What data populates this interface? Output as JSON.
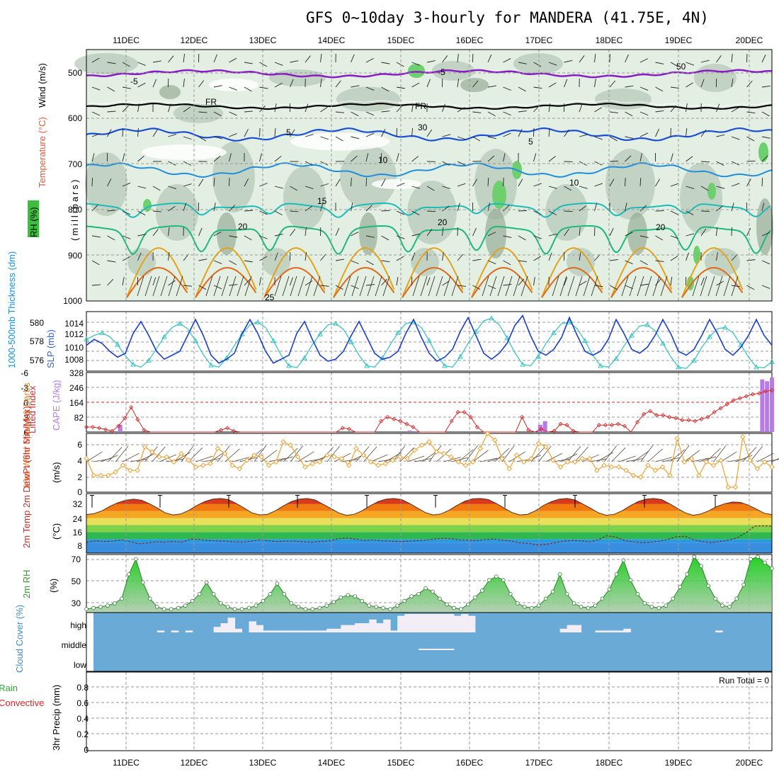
{
  "title": "GFS 0~10day 3-hourly for MANDERA (41.75E, 4N)",
  "colors": {
    "rh_light": "#e2efe2",
    "rh_mid": "#b8cab8",
    "rh_dark": "#99ad99",
    "rh_green": "#6ecf6e",
    "temp_purple": "#8a1cc4",
    "temp_blue": "#1d4fd6",
    "temp_lblue": "#1f8fdd",
    "temp_cyan": "#1cbcb8",
    "temp_green": "#1eb87c",
    "temp_orange": "#e3a21c",
    "temp_dorange": "#e06a1c",
    "sky_blue": "#6aaad6",
    "cloud": "#f3eef6",
    "rh2m_fill": "#5cc05c",
    "rh2m_line": "#2e7d2e",
    "cape_purple": "#b77be8",
    "lifted_red": "#d62828",
    "wind_orange": "#f0a030",
    "slp_teal": "#3ec3c3",
    "thick_blue": "#1b3fc8"
  },
  "time_axis": {
    "labels": [
      "11DEC",
      "12DEC",
      "13DEC",
      "14DEC",
      "15DEC",
      "16DEC",
      "17DEC",
      "18DEC",
      "19DEC",
      "20DEC"
    ]
  },
  "panels": {
    "upper_air": {
      "ylabel_wind": "Wind (m/s)",
      "ylabel_temp": "Temperature (°C)",
      "ylabel_rh": "RH (%)",
      "ylabel_unit": "(millibars)",
      "yticks": [
        "500",
        "600",
        "700",
        "800",
        "900",
        "1000"
      ],
      "contour_labels": [
        "-5",
        "FR",
        "5",
        "10",
        "15",
        "20",
        "25",
        "50",
        "30",
        "-5",
        "FR",
        "5",
        "10",
        "20",
        "20"
      ]
    },
    "thickness_slp": {
      "ylabel_thick": "1000-500mb Thickness (dm)",
      "ylabel_slp": "SLP (mb)",
      "yticks_left": [
        "580",
        "578",
        "576"
      ],
      "yticks_right": [
        "1014",
        "1012",
        "1010",
        "1008"
      ]
    },
    "lifted_cape": {
      "ylabel_li": "Lifted Index",
      "ylabel_cape": "CAPE (J/kg)",
      "yticks_left": [
        "-6",
        "-3",
        "0",
        "3",
        "6"
      ],
      "yticks_right": [
        "328",
        "246",
        "164",
        "82"
      ]
    },
    "wind10m": {
      "ylabel": "10m Wind Speed & Barbs",
      "ylabel_unit": "(m/s)",
      "yticks": [
        "6",
        "4",
        "2",
        "0"
      ]
    },
    "temp2m": {
      "ylabel": "2m Temp 2m DewPt (6hr Min/Max)",
      "ylabel_unit": "(°C)",
      "yticks": [
        "32",
        "24",
        "16",
        "8"
      ]
    },
    "rh2m": {
      "ylabel": "2m RH",
      "ylabel_unit": "(%)",
      "yticks": [
        "70",
        "50",
        "30"
      ]
    },
    "cloud": {
      "ylabel": "Cloud Cover (%)",
      "levels": [
        "high",
        "middle",
        "low"
      ]
    },
    "precip": {
      "ylabel_total": "Total / Rain",
      "ylabel_conv": "Convective",
      "ylabel_main": "3hr Precip (mm)",
      "yticks": [
        "0.8",
        "0.6",
        "0.4",
        "0.2",
        "0"
      ],
      "run_total": "Run Total = 0"
    }
  },
  "chart_data": [
    {
      "type": "line",
      "title": "1000-500mb Thickness / SLP",
      "series": [
        {
          "name": "SLP (mb)",
          "values": [
            1011.8,
            1012.4,
            1012.8,
            1012.2,
            1011.0,
            1009.3,
            1008.0,
            1007.6,
            1008.6,
            1010.4,
            1012.2,
            1013.6,
            1014.2,
            1013.4,
            1011.6,
            1009.5,
            1007.9,
            1007.6,
            1009.0,
            1010.9,
            1012.6,
            1014.0,
            1014.4,
            1013.6,
            1011.6,
            1009.4,
            1007.8,
            1007.5,
            1009.0,
            1011.0,
            1012.6,
            1014.0,
            1014.2,
            1013.3,
            1011.4,
            1009.4,
            1007.8,
            1007.6,
            1009.0,
            1011.0,
            1012.8,
            1014.2,
            1014.4,
            1013.6,
            1011.6,
            1009.4,
            1007.8,
            1007.6,
            1009.2,
            1011.2,
            1013.0,
            1014.6,
            1015.0,
            1014.0,
            1012.0,
            1009.8,
            1008.0,
            1007.8,
            1009.2,
            1011.2,
            1012.8,
            1014.2,
            1014.4,
            1013.4,
            1011.6,
            1009.4,
            1007.8,
            1007.6,
            1008.9,
            1010.8,
            1012.4,
            1013.8,
            1014.0,
            1013.1,
            1011.2,
            1009.2,
            1007.6,
            1007.4,
            1008.6,
            1010.6,
            1012.2,
            1013.4,
            1013.6,
            1012.8,
            1011.0,
            1009.1,
            1007.6,
            1007.5,
            1008.4
          ]
        },
        {
          "name": "Thickness (dm)",
          "values": [
            577.6,
            578.2,
            577.8,
            577.0,
            576.4,
            576.8,
            578.8,
            580.0,
            578.6,
            577.0,
            576.2,
            576.6,
            577.0,
            578.6,
            580.2,
            578.6,
            576.6,
            575.8,
            576.2,
            576.8,
            578.8,
            580.2,
            578.8,
            577.0,
            575.8,
            576.2,
            576.6,
            578.8,
            580.0,
            578.2,
            576.6,
            576.0,
            576.2,
            577.0,
            578.6,
            580.0,
            578.4,
            576.8,
            576.2,
            576.4,
            577.0,
            578.8,
            580.2,
            578.4,
            576.8,
            576.0,
            576.4,
            577.2,
            579.0,
            580.4,
            578.6,
            576.8,
            576.2,
            576.8,
            577.8,
            579.6,
            580.6,
            578.6,
            577.0,
            576.6,
            577.2,
            578.4,
            580.4,
            578.6,
            577.0,
            576.6,
            577.0,
            578.2,
            580.2,
            578.8,
            577.2,
            576.8,
            577.4,
            578.6,
            580.2,
            578.8,
            577.0,
            576.6,
            577.2,
            578.6,
            580.2,
            578.8,
            577.2,
            576.6,
            577.4,
            578.6,
            580.2,
            578.6,
            577.6
          ]
        }
      ],
      "ylim_left": [
        575,
        581
      ],
      "ylim_right": [
        1007,
        1016
      ]
    },
    {
      "type": "bar",
      "title": "CAPE (J/kg) / Lifted Index",
      "cape_values": [
        0,
        0,
        0,
        0,
        0,
        0,
        0,
        40,
        0,
        0,
        0,
        0,
        0,
        0,
        0,
        0,
        0,
        0,
        0,
        0,
        0,
        0,
        0,
        0,
        0,
        0,
        0,
        0,
        0,
        0,
        0,
        0,
        0,
        0,
        0,
        0,
        0,
        0,
        0,
        0,
        0,
        0,
        0,
        0,
        0,
        0,
        0,
        0,
        0,
        0,
        0,
        0,
        0,
        0,
        0,
        0,
        0,
        0,
        0,
        0,
        0,
        0,
        0,
        0,
        0,
        0,
        0,
        8,
        0,
        0,
        0,
        0,
        0,
        0,
        0,
        0,
        0,
        0,
        0,
        0,
        0,
        0,
        0,
        0,
        0,
        0,
        0,
        0,
        0,
        0,
        0,
        0,
        0,
        0,
        40,
        60,
        0,
        0,
        0,
        0,
        0,
        0,
        0,
        0,
        0,
        0,
        0,
        0,
        0,
        0,
        0,
        0,
        0,
        0,
        0,
        0,
        0,
        0,
        0,
        0,
        0,
        0,
        0,
        0,
        0,
        0,
        0,
        0,
        0,
        0,
        0,
        0,
        0,
        0,
        0,
        0,
        0,
        0,
        0,
        0,
        290,
        280,
        300
      ],
      "lifted_index": [
        5.0,
        5.0,
        5.2,
        5.5,
        5.8,
        4.8,
        3.2,
        1.0,
        3.5,
        5.6,
        6.0,
        6.0,
        6.0,
        6.0,
        6.0,
        6.0,
        6.0,
        6.0,
        6.0,
        6.0,
        6.0,
        5.6,
        5.2,
        5.8,
        6.0,
        6.0,
        6.0,
        6.0,
        6.0,
        6.0,
        6.0,
        6.0,
        6.0,
        6.0,
        6.0,
        6.0,
        6.0,
        6.0,
        6.0,
        6.0,
        5.2,
        5.4,
        6.0,
        6.0,
        6.0,
        6.0,
        3.8,
        3.0,
        3.4,
        3.8,
        4.4,
        5.0,
        6.0,
        6.0,
        6.0,
        6.0,
        6.0,
        3.8,
        2.0,
        2.0,
        3.0,
        5.0,
        6.0,
        6.0,
        6.0,
        6.0,
        6.0,
        6.0,
        3.0,
        5.6,
        6.0,
        5.4,
        6.0,
        5.8,
        4.4,
        4.6,
        5.8,
        6.0,
        6.0,
        6.0,
        4.6,
        4.6,
        4.6,
        4.4,
        4.8,
        6.0,
        4.0,
        2.4,
        1.8,
        2.6,
        2.6,
        3.0,
        3.2,
        3.6,
        3.6,
        3.8,
        3.4,
        3.0,
        2.0,
        1.2,
        0.4,
        -0.4,
        -0.8,
        -1.2,
        -1.6,
        -1.8,
        -2.2,
        -2.4
      ],
      "ylim_left": [
        6,
        -6
      ],
      "ylim_right": [
        0,
        328
      ]
    },
    {
      "type": "line",
      "title": "10m Wind Speed (m/s)",
      "values": [
        4.0,
        2.0,
        2.0,
        2.0,
        2.4,
        3.2,
        2.6,
        2.6,
        5.4,
        4.8,
        4.2,
        4.2,
        3.6,
        4.6,
        3.8,
        3.0,
        3.2,
        3.4,
        5.2,
        4.6,
        3.2,
        2.8,
        3.8,
        4.4,
        4.2,
        3.2,
        3.6,
        6.0,
        5.6,
        4.2,
        3.0,
        3.4,
        3.6,
        4.4,
        4.2,
        4.0,
        3.2,
        5.2,
        4.4,
        3.6,
        3.2,
        3.4,
        3.8,
        4.2,
        4.0,
        5.0,
        5.6,
        6.0,
        4.8,
        4.6,
        4.2,
        3.6,
        3.2,
        3.6,
        5.2,
        7.0,
        6.2,
        4.0,
        2.8,
        4.4,
        3.6,
        4.0,
        5.8,
        5.4,
        3.8,
        3.0,
        3.6,
        3.6,
        4.0,
        4.0,
        2.6,
        3.2,
        3.0,
        3.0,
        2.6,
        2.0,
        1.8,
        3.2,
        2.6,
        3.0,
        2.0,
        6.4,
        3.6,
        4.0,
        2.0,
        3.6,
        3.2,
        3.8,
        0.6,
        0.6,
        6.6,
        3.8,
        2.8,
        3.6,
        3.0
      ],
      "ylim": [
        0,
        7
      ]
    },
    {
      "type": "area",
      "title": "2m Temp / 2m DewPt (°C)",
      "temp": [
        26.0,
        26.6,
        28.2,
        30.8,
        32.8,
        34.2,
        34.8,
        34.2,
        32.2,
        29.8,
        27.0,
        25.8,
        26.4,
        28.4,
        31.2,
        33.4,
        34.8,
        35.2,
        34.6,
        32.4,
        29.8,
        27.0,
        25.8,
        26.2,
        28.2,
        31.0,
        33.4,
        34.8,
        35.2,
        34.4,
        32.0,
        29.6,
        27.0,
        25.6,
        26.2,
        28.2,
        31.0,
        33.4,
        34.8,
        35.2,
        34.6,
        32.4,
        29.8,
        27.2,
        25.8,
        26.4,
        28.4,
        31.2,
        33.6,
        35.0,
        35.2,
        34.6,
        32.4,
        29.8,
        27.2,
        25.8,
        26.2,
        28.2,
        31.2,
        33.4,
        34.8,
        35.2,
        34.4,
        32.0,
        29.6,
        27.0,
        25.6,
        26.2,
        28.2,
        31.0,
        33.4,
        34.8,
        35.2,
        34.6,
        32.2,
        29.6,
        27.0,
        25.6,
        26.4,
        28.2,
        30.6,
        32.2,
        33.2,
        33.0,
        31.4,
        29.2,
        26.8,
        26.0
      ],
      "dewpt": [
        10.0,
        11.0,
        10.6,
        10.8,
        11.6,
        10.6,
        9.4,
        9.8,
        10.4,
        10.2,
        10.6,
        10.2,
        12.0,
        11.8,
        11.2,
        11.0,
        10.8,
        10.4,
        10.2,
        10.8,
        11.6,
        11.0,
        10.6,
        10.8,
        10.8,
        10.4,
        10.2,
        10.6,
        11.0,
        12.2,
        12.6,
        12.0,
        11.2,
        11.6,
        11.0,
        10.8,
        10.6,
        10.8,
        11.0,
        11.4,
        12.0,
        12.4,
        12.2,
        11.6,
        11.4,
        11.2,
        11.8,
        12.0,
        11.4,
        10.8,
        9.8,
        9.6,
        8.6,
        9.0,
        10.0,
        10.8,
        11.2,
        11.0,
        10.4,
        11.6,
        14.0,
        13.2,
        11.2,
        10.4,
        10.0,
        10.2,
        10.8,
        11.8,
        13.4,
        13.6,
        11.6,
        10.6,
        10.0,
        10.6,
        11.4,
        12.8,
        15.6,
        19.4,
        19.6,
        19.4
      ],
      "ylim": [
        4,
        38
      ]
    },
    {
      "type": "area",
      "title": "2m RH (%)",
      "values": [
        25,
        26,
        27,
        28,
        30,
        34,
        55,
        68,
        48,
        34,
        27,
        25,
        25,
        26,
        28,
        32,
        38,
        48,
        38,
        30,
        27,
        25,
        25,
        26,
        28,
        32,
        38,
        47,
        38,
        30,
        27,
        25,
        25,
        26,
        28,
        31,
        35,
        37,
        36,
        32,
        28,
        27,
        26,
        25,
        28,
        32,
        36,
        38,
        43,
        40,
        34,
        29,
        26,
        25,
        29,
        35,
        41,
        50,
        53,
        50,
        38,
        30,
        27,
        26,
        28,
        34,
        40,
        55,
        38,
        30,
        27,
        26,
        28,
        34,
        42,
        55,
        67,
        50,
        38,
        30,
        27,
        26,
        28,
        34,
        44,
        55,
        70,
        62,
        45,
        34,
        28,
        27,
        34,
        46,
        68,
        70,
        65,
        60
      ],
      "ylim": [
        22,
        72
      ]
    },
    {
      "type": "table",
      "title": "Cloud Cover (%)",
      "high": [
        0,
        0,
        0,
        0,
        0,
        0,
        0,
        0,
        0,
        10,
        0,
        10,
        0,
        10,
        0,
        0,
        0,
        30,
        50,
        80,
        20,
        0,
        60,
        40,
        10,
        10,
        10,
        10,
        10,
        10,
        10,
        10,
        10,
        20,
        20,
        40,
        40,
        50,
        50,
        70,
        50,
        70,
        10,
        90,
        100,
        100,
        100,
        100,
        100,
        100,
        100,
        90,
        100,
        90,
        0,
        0,
        0,
        0,
        0,
        0,
        0,
        0,
        0,
        0,
        0,
        0,
        20,
        40,
        40,
        0,
        0,
        10,
        10,
        10,
        10,
        20,
        0,
        0,
        0,
        0,
        0,
        0,
        0,
        0,
        0,
        0,
        0,
        0,
        10,
        0,
        0,
        0,
        0,
        0,
        0,
        0
      ],
      "middle": [
        0,
        0,
        0,
        0,
        0,
        0,
        0,
        0,
        0,
        0,
        0,
        0,
        0,
        0,
        0,
        0,
        0,
        0,
        0,
        0,
        0,
        0,
        0,
        0,
        0,
        0,
        0,
        0,
        0,
        0,
        0,
        0,
        0,
        0,
        0,
        0,
        0,
        0,
        0,
        0,
        0,
        0,
        0,
        0,
        0,
        0,
        10,
        10,
        10,
        10,
        10,
        0,
        0,
        0,
        0,
        0,
        0,
        0,
        0,
        0,
        0,
        0,
        0,
        0,
        0,
        0,
        0,
        0,
        0,
        0,
        0,
        0,
        0,
        0,
        0,
        0,
        0,
        0,
        0,
        0,
        0,
        0,
        0,
        0,
        0,
        0,
        0,
        0,
        0,
        0,
        0,
        0,
        0,
        0,
        0,
        0
      ],
      "low": [
        0,
        0,
        0,
        0,
        0,
        0,
        0,
        0,
        0,
        0,
        0,
        0,
        0,
        0,
        0,
        0,
        0,
        0,
        0,
        0,
        0,
        0,
        0,
        0,
        0,
        0,
        0,
        0,
        0,
        0,
        0,
        0,
        0,
        0,
        0,
        0,
        0,
        0,
        0,
        0,
        0,
        0,
        0,
        0,
        0,
        0,
        0,
        0,
        0,
        0,
        0,
        0,
        0,
        0,
        0,
        0,
        0,
        0,
        0,
        0,
        0,
        0,
        0,
        0,
        0,
        0,
        0,
        0,
        0,
        0,
        0,
        0,
        0,
        0,
        0,
        0,
        0,
        0,
        0,
        0,
        0,
        0,
        0,
        0,
        0,
        0,
        0,
        0,
        0,
        0,
        0,
        0,
        0,
        0,
        0,
        0
      ]
    },
    {
      "type": "bar",
      "title": "3hr Precip (mm)",
      "values": [],
      "ylim": [
        0,
        0.9
      ]
    }
  ]
}
